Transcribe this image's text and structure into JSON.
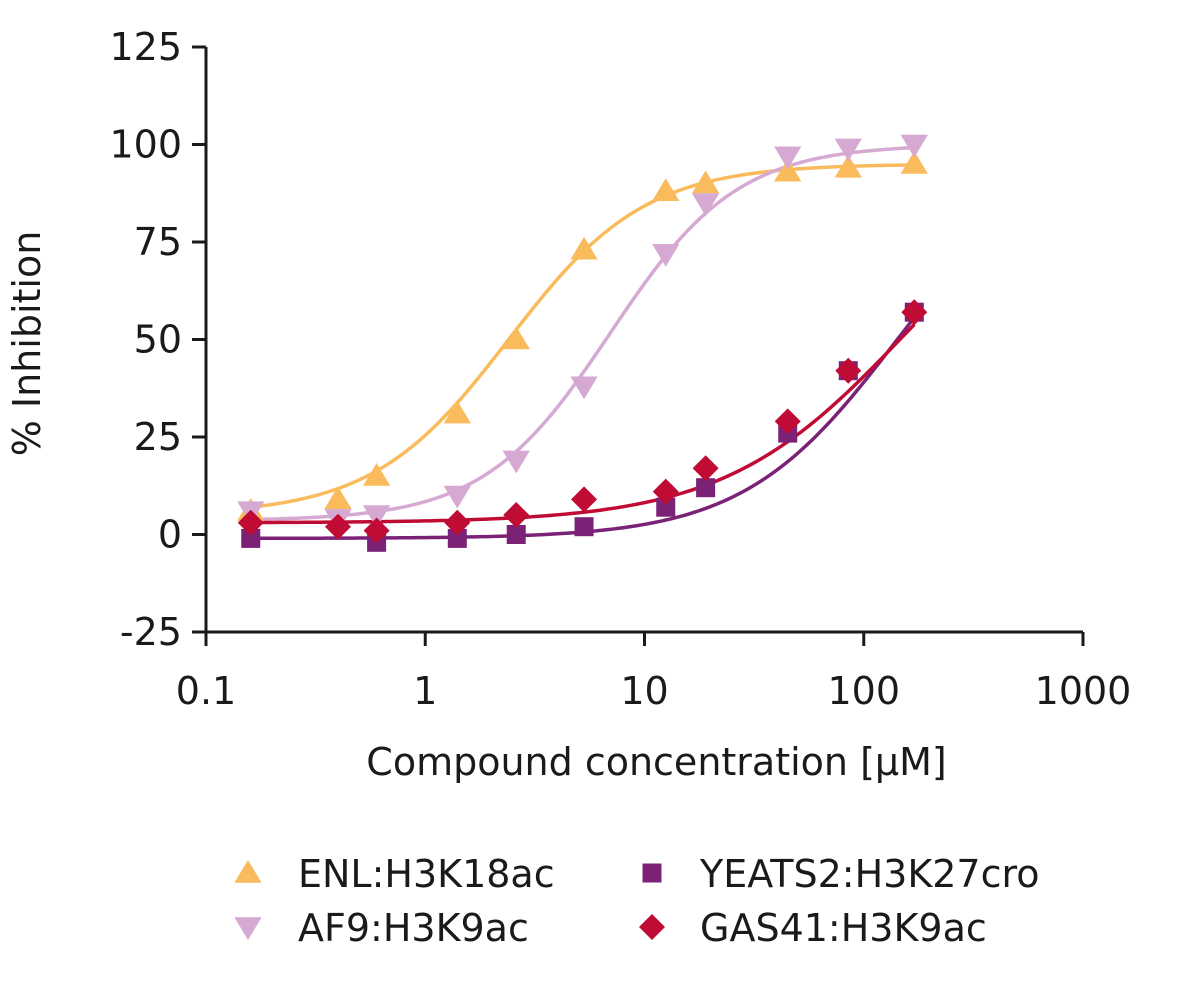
{
  "chart_data": {
    "type": "scatter",
    "xlabel": "Compound concentration [μM]",
    "ylabel": "% Inhibition",
    "xscale": "log",
    "xlim": [
      0.1,
      1000
    ],
    "ylim": [
      -25,
      125
    ],
    "xticks": [
      0.1,
      1,
      10,
      100,
      1000
    ],
    "xtick_labels": [
      "0.1",
      "1",
      "10",
      "100",
      "1000"
    ],
    "yticks": [
      -25,
      0,
      25,
      50,
      75,
      100,
      125
    ],
    "ytick_labels": [
      "-25",
      "0",
      "25",
      "50",
      "75",
      "100",
      "125"
    ],
    "grid": false,
    "legend_position": "bottom",
    "series": [
      {
        "name": "ENL:H3K18ac",
        "color": "#f9bb5c",
        "marker": "triangle-up",
        "points": [
          [
            0.16,
            6
          ],
          [
            0.4,
            9
          ],
          [
            0.6,
            15
          ],
          [
            1.4,
            31
          ],
          [
            2.6,
            50
          ],
          [
            5.3,
            73
          ],
          [
            12.5,
            88
          ],
          [
            19,
            90
          ],
          [
            45,
            93
          ],
          [
            85,
            94
          ],
          [
            170,
            95
          ]
        ],
        "fit": {
          "bottom": 5,
          "top": 95,
          "ec50": 2.4,
          "hill": 1.4
        }
      },
      {
        "name": "AF9:H3K9ac",
        "color": "#d6a9d3",
        "marker": "triangle-down",
        "points": [
          [
            0.16,
            6
          ],
          [
            0.4,
            4
          ],
          [
            0.6,
            5
          ],
          [
            1.4,
            10
          ],
          [
            2.6,
            19
          ],
          [
            5.3,
            38
          ],
          [
            12.5,
            72
          ],
          [
            19,
            85
          ],
          [
            45,
            97
          ],
          [
            85,
            99
          ],
          [
            170,
            100
          ]
        ],
        "fit": {
          "bottom": 3.5,
          "top": 100,
          "ec50": 7,
          "hill": 1.5
        }
      },
      {
        "name": "YEATS2:H3K27cro",
        "color": "#7b2277",
        "marker": "square",
        "points": [
          [
            0.16,
            -1
          ],
          [
            0.6,
            -2
          ],
          [
            1.4,
            -1
          ],
          [
            2.6,
            0
          ],
          [
            5.3,
            2
          ],
          [
            12.5,
            7
          ],
          [
            19,
            12
          ],
          [
            45,
            26
          ],
          [
            85,
            42
          ],
          [
            170,
            57
          ]
        ],
        "fit": {
          "bottom": -1,
          "top": 100,
          "ec50": 140,
          "hill": 1.25
        }
      },
      {
        "name": "GAS41:H3K9ac",
        "color": "#c00b35",
        "marker": "diamond",
        "points": [
          [
            0.16,
            3
          ],
          [
            0.4,
            2
          ],
          [
            0.6,
            1
          ],
          [
            1.4,
            3
          ],
          [
            2.6,
            5
          ],
          [
            5.3,
            9
          ],
          [
            12.5,
            11
          ],
          [
            19,
            17
          ],
          [
            45,
            29
          ],
          [
            85,
            42
          ],
          [
            170,
            57
          ]
        ],
        "fit": {
          "bottom": 3,
          "top": 100,
          "ec50": 155,
          "hill": 1.05
        }
      }
    ]
  }
}
